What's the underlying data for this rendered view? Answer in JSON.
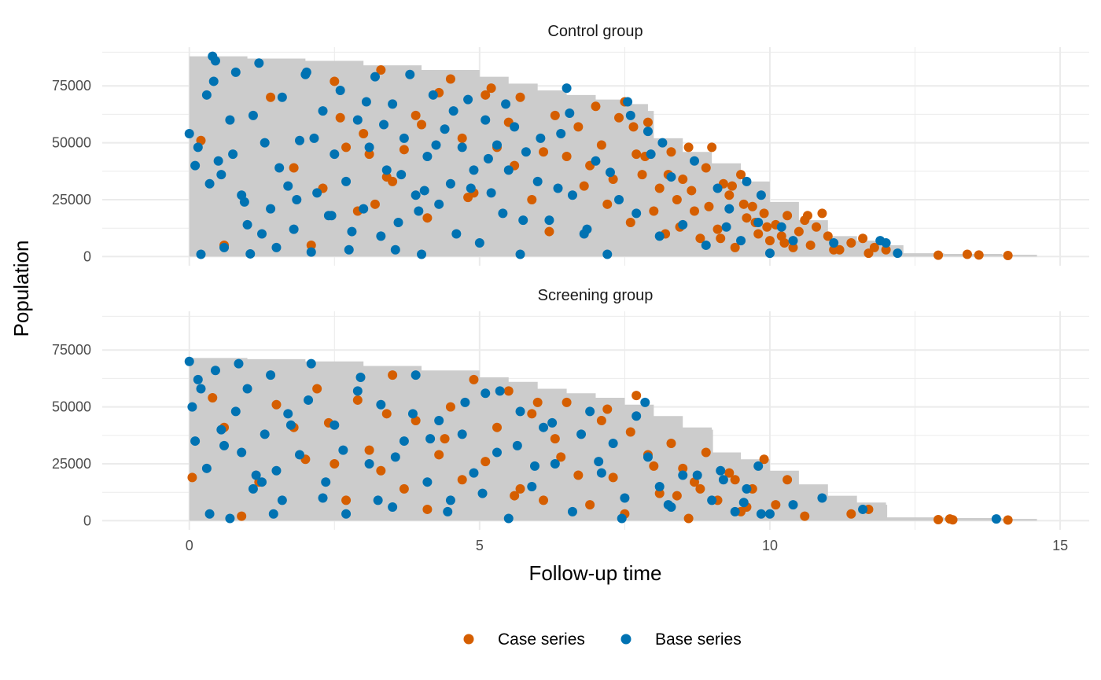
{
  "chart_data": {
    "type": "scatter",
    "xlabel": "Follow-up time",
    "ylabel": "Population",
    "xlim": [
      -1.5,
      15.5
    ],
    "ylim": [
      -4000,
      92000
    ],
    "x_ticks": [
      0,
      5,
      10,
      15
    ],
    "y_ticks": [
      0,
      25000,
      50000,
      75000
    ],
    "grid": true,
    "legend_position": "bottom",
    "colors": {
      "case": "#D55E00",
      "base": "#0072B2",
      "area": "#cccccc",
      "grid": "#ebebeb"
    },
    "legend": [
      {
        "name": "Case series",
        "color": "#D55E00"
      },
      {
        "name": "Base series",
        "color": "#0072B2"
      }
    ],
    "panels": [
      {
        "title": "Control group",
        "area": {
          "x": [
            0,
            1,
            2,
            3,
            4,
            5,
            5.5,
            6,
            6.5,
            7,
            7.5,
            7.9,
            8.0,
            8.5,
            9.0,
            9.5,
            10.0,
            10.5,
            11.0,
            11.5,
            12.0,
            12.3,
            13.0,
            14.0,
            14.6
          ],
          "y": [
            88000,
            87000,
            86000,
            84000,
            82000,
            79000,
            76000,
            73000,
            71000,
            69000,
            67000,
            64000,
            52000,
            46000,
            41000,
            33000,
            24000,
            16000,
            9000,
            7000,
            5000,
            1500,
            1200,
            800,
            300
          ]
        },
        "case_series": {
          "x": [
            0.2,
            0.6,
            1.4,
            1.8,
            2.1,
            2.3,
            2.5,
            2.7,
            2.9,
            3.0,
            3.2,
            3.3,
            3.5,
            3.7,
            3.9,
            4.1,
            4.3,
            4.5,
            4.7,
            4.9,
            5.1,
            5.3,
            5.5,
            5.7,
            5.9,
            6.1,
            6.3,
            6.5,
            6.7,
            6.9,
            7.0,
            7.2,
            7.3,
            7.4,
            7.5,
            7.6,
            7.7,
            7.8,
            7.9,
            8.0,
            8.1,
            8.2,
            8.3,
            8.4,
            8.5,
            8.6,
            8.7,
            8.8,
            8.9,
            9.0,
            9.1,
            9.2,
            9.3,
            9.4,
            9.5,
            9.6,
            9.7,
            9.8,
            9.9,
            10.0,
            10.1,
            10.2,
            10.3,
            10.4,
            10.5,
            10.6,
            10.7,
            10.8,
            10.9,
            11.0,
            11.2,
            11.4,
            11.6,
            11.8,
            12.0,
            12.9,
            13.4,
            13.6,
            14.1,
            2.6,
            3.1,
            4.0,
            4.8,
            5.6,
            6.2,
            6.8,
            7.1,
            7.65,
            7.85,
            8.25,
            8.45,
            8.65,
            8.95,
            9.15,
            9.35,
            9.55,
            9.75,
            9.95,
            10.25,
            10.65,
            11.1,
            11.7,
            3.4,
            5.2
          ],
          "y": [
            51000,
            5000,
            70000,
            39000,
            5000,
            30000,
            77000,
            48000,
            20000,
            54000,
            23000,
            82000,
            33000,
            47000,
            62000,
            17000,
            72000,
            78000,
            52000,
            28000,
            71000,
            48000,
            59000,
            70000,
            25000,
            46000,
            62000,
            44000,
            57000,
            40000,
            66000,
            23000,
            34000,
            61000,
            68000,
            15000,
            45000,
            36000,
            59000,
            20000,
            30000,
            10000,
            46000,
            25000,
            34000,
            48000,
            20000,
            8000,
            39000,
            48000,
            12000,
            32000,
            27000,
            4000,
            36000,
            17000,
            22000,
            10000,
            19000,
            7000,
            14000,
            9000,
            18000,
            4000,
            11000,
            16000,
            5000,
            13000,
            19000,
            9000,
            3000,
            6000,
            8000,
            4000,
            3000,
            600,
            1000,
            700,
            500,
            61000,
            45000,
            58000,
            26000,
            40000,
            11000,
            31000,
            49000,
            57000,
            44000,
            36000,
            13000,
            29000,
            22000,
            8000,
            31000,
            23000,
            15000,
            13000,
            6000,
            18000,
            3000,
            1500,
            35000,
            74000
          ]
        },
        "base_series": {
          "x": [
            0,
            0.1,
            0.2,
            0.3,
            0.4,
            0.45,
            0.5,
            0.6,
            0.7,
            0.8,
            0.9,
            1.0,
            1.1,
            1.2,
            1.3,
            1.4,
            1.5,
            1.6,
            1.7,
            1.8,
            1.9,
            2.0,
            2.1,
            2.2,
            2.3,
            2.4,
            2.5,
            2.6,
            2.7,
            2.8,
            2.9,
            3.0,
            3.1,
            3.2,
            3.3,
            3.4,
            3.5,
            3.6,
            3.7,
            3.8,
            3.9,
            4.0,
            4.1,
            4.2,
            4.3,
            4.4,
            4.5,
            4.6,
            4.7,
            4.8,
            4.9,
            5.0,
            5.1,
            5.2,
            5.3,
            5.4,
            5.5,
            5.6,
            5.7,
            5.8,
            6.0,
            6.2,
            6.4,
            6.5,
            6.6,
            6.8,
            7.0,
            7.2,
            7.4,
            7.6,
            7.7,
            7.9,
            8.1,
            8.3,
            8.5,
            8.7,
            8.9,
            9.1,
            9.3,
            9.5,
            9.6,
            9.8,
            10.0,
            10.2,
            10.4,
            11.1,
            11.9,
            12.0,
            12.2,
            0.15,
            0.35,
            0.55,
            0.75,
            0.95,
            1.25,
            1.55,
            1.85,
            2.15,
            2.45,
            2.75,
            3.05,
            3.35,
            3.65,
            3.95,
            4.25,
            4.55,
            4.85,
            5.15,
            5.45,
            5.75,
            6.05,
            6.35,
            6.85,
            7.25,
            7.55,
            7.95,
            8.15,
            9.25,
            9.85,
            0.42,
            1.05,
            2.02,
            3.55,
            4.05,
            6.55
          ],
          "y": [
            54000,
            40000,
            1000,
            71000,
            88000,
            86000,
            42000,
            4000,
            60000,
            81000,
            27000,
            14000,
            62000,
            85000,
            50000,
            21000,
            4000,
            70000,
            31000,
            12000,
            51000,
            80000,
            2000,
            28000,
            64000,
            18000,
            45000,
            73000,
            33000,
            11000,
            60000,
            21000,
            48000,
            79000,
            9000,
            38000,
            67000,
            15000,
            52000,
            80000,
            27000,
            1000,
            44000,
            71000,
            23000,
            56000,
            32000,
            10000,
            48000,
            69000,
            38000,
            6000,
            60000,
            28000,
            49000,
            19000,
            38000,
            57000,
            1000,
            46000,
            33000,
            16000,
            54000,
            74000,
            27000,
            10000,
            42000,
            1000,
            25000,
            62000,
            19000,
            55000,
            9000,
            35000,
            14000,
            42000,
            5000,
            30000,
            21000,
            7000,
            33000,
            15000,
            1500,
            13000,
            7000,
            6000,
            7000,
            6000,
            1500,
            48000,
            32000,
            36000,
            45000,
            24000,
            10000,
            39000,
            25000,
            52000,
            18000,
            3000,
            68000,
            58000,
            36000,
            20000,
            49000,
            64000,
            30000,
            43000,
            67000,
            16000,
            52000,
            30000,
            12000,
            37000,
            68000,
            45000,
            50000,
            13000,
            27000,
            77000,
            1200,
            81000,
            3000,
            29000,
            63000
          ]
        }
      },
      {
        "title": "Screening group",
        "area": {
          "x": [
            0,
            1,
            2,
            3,
            4,
            5,
            5.5,
            6,
            6.5,
            7,
            7.5,
            8,
            8.5,
            9.0,
            9.02,
            9.5,
            10.0,
            10.5,
            11.0,
            11.5,
            12.0,
            12.02,
            13.0,
            14.0,
            14.6
          ],
          "y": [
            71500,
            71000,
            70000,
            68000,
            66000,
            63000,
            61000,
            58000,
            56000,
            54000,
            51000,
            46000,
            41000,
            40000,
            30000,
            27000,
            22000,
            16000,
            11000,
            8000,
            7000,
            1500,
            1200,
            800,
            300
          ]
        },
        "case_series": {
          "x": [
            0.05,
            0.4,
            0.6,
            0.9,
            1.2,
            1.5,
            1.8,
            2.0,
            2.2,
            2.5,
            2.7,
            2.9,
            3.1,
            3.3,
            3.5,
            3.7,
            3.9,
            4.1,
            4.3,
            4.5,
            4.7,
            4.9,
            5.1,
            5.3,
            5.5,
            5.7,
            5.9,
            6.1,
            6.3,
            6.5,
            6.7,
            6.9,
            7.1,
            7.3,
            7.5,
            7.7,
            7.9,
            8.1,
            8.3,
            8.5,
            8.6,
            8.7,
            8.9,
            9.1,
            9.3,
            9.5,
            9.7,
            9.9,
            10.1,
            10.3,
            10.6,
            11.4,
            11.7,
            12.9,
            13.1,
            13.15,
            14.1,
            3.4,
            4.4,
            5.6,
            6.4,
            7.2,
            7.6,
            8.0,
            8.4,
            8.8,
            9.4,
            9.6,
            2.4,
            6.0
          ],
          "y": [
            19000,
            54000,
            41000,
            2000,
            17000,
            51000,
            41000,
            27000,
            58000,
            25000,
            9000,
            53000,
            31000,
            22000,
            64000,
            14000,
            44000,
            5000,
            29000,
            50000,
            18000,
            62000,
            26000,
            41000,
            57000,
            14000,
            47000,
            9000,
            36000,
            52000,
            20000,
            7000,
            44000,
            19000,
            3000,
            55000,
            29000,
            12000,
            34000,
            23000,
            1000,
            17000,
            30000,
            9000,
            21000,
            4000,
            14000,
            27000,
            7000,
            18000,
            2000,
            3000,
            5000,
            500,
            800,
            400,
            300,
            47000,
            36000,
            11000,
            28000,
            49000,
            39000,
            24000,
            11000,
            14000,
            18000,
            6000,
            43000,
            52000
          ]
        },
        "base_series": {
          "x": [
            0,
            0.05,
            0.1,
            0.15,
            0.3,
            0.45,
            0.55,
            0.7,
            0.8,
            0.9,
            1.0,
            1.1,
            1.3,
            1.4,
            1.5,
            1.6,
            1.7,
            1.9,
            2.1,
            2.3,
            2.5,
            2.7,
            2.9,
            3.1,
            3.3,
            3.5,
            3.7,
            3.9,
            4.1,
            4.3,
            4.5,
            4.7,
            4.9,
            5.1,
            5.3,
            5.5,
            5.7,
            5.9,
            6.1,
            6.3,
            6.6,
            6.9,
            7.1,
            7.3,
            7.5,
            7.7,
            7.9,
            8.1,
            8.3,
            8.5,
            9.0,
            9.2,
            9.4,
            9.6,
            9.8,
            10.0,
            10.4,
            10.9,
            11.6,
            13.9,
            0.2,
            0.6,
            0.85,
            1.15,
            1.45,
            1.75,
            2.05,
            2.35,
            2.65,
            2.95,
            3.25,
            3.55,
            3.85,
            4.15,
            4.45,
            4.75,
            5.05,
            5.35,
            5.65,
            5.95,
            6.25,
            6.75,
            7.05,
            7.45,
            7.85,
            8.25,
            8.75,
            9.15,
            9.55,
            9.85,
            0.35,
            1.25
          ],
          "y": [
            70000,
            50000,
            35000,
            62000,
            23000,
            66000,
            40000,
            1000,
            48000,
            30000,
            58000,
            14000,
            38000,
            64000,
            22000,
            9000,
            47000,
            29000,
            69000,
            10000,
            42000,
            3000,
            57000,
            25000,
            51000,
            6000,
            35000,
            64000,
            17000,
            44000,
            9000,
            38000,
            21000,
            56000,
            30000,
            1000,
            48000,
            15000,
            41000,
            25000,
            4000,
            48000,
            21000,
            34000,
            10000,
            46000,
            28000,
            15000,
            6000,
            20000,
            9000,
            18000,
            4000,
            14000,
            24000,
            3000,
            7000,
            10000,
            5000,
            800,
            58000,
            33000,
            69000,
            20000,
            3000,
            42000,
            53000,
            17000,
            31000,
            63000,
            9000,
            28000,
            47000,
            36000,
            4000,
            52000,
            12000,
            57000,
            33000,
            24000,
            43000,
            38000,
            26000,
            1000,
            52000,
            7000,
            20000,
            22000,
            8000,
            3000,
            3000,
            17000
          ]
        }
      }
    ]
  }
}
